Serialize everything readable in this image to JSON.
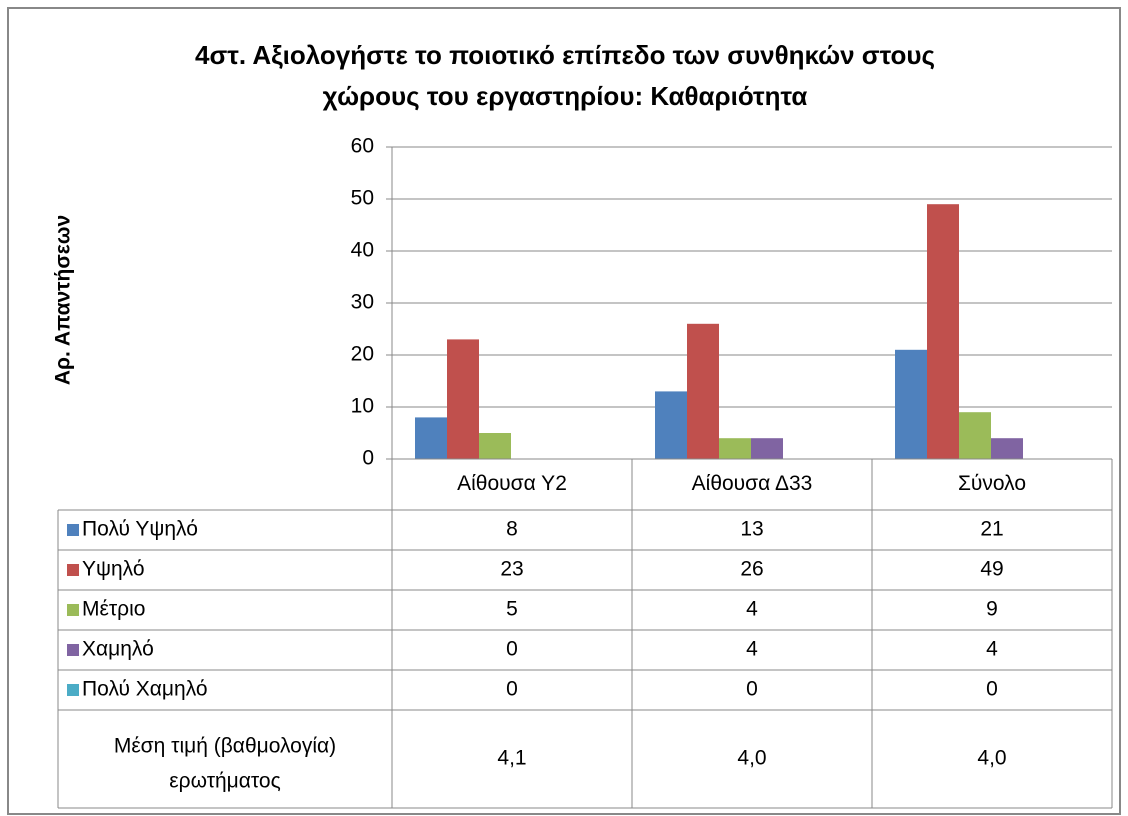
{
  "chart_data": {
    "type": "bar",
    "title": [
      "4στ. Αξιολογήστε το ποιοτικό επίπεδο των συνθηκών στους",
      "χώρους του εργαστηρίου: Καθαριότητα"
    ],
    "y_label": "Αρ. Απαντήσεων",
    "categories": [
      "Αίθουσα Υ2",
      "Αίθουσα Δ33",
      "Σύνολο"
    ],
    "series": [
      {
        "name": "Πολύ Υψηλό",
        "color": "#4F81BD",
        "values": [
          8,
          13,
          21
        ]
      },
      {
        "name": "Υψηλό",
        "color": "#C0504D",
        "values": [
          23,
          26,
          49
        ]
      },
      {
        "name": "Μέτριο",
        "color": "#9BBB59",
        "values": [
          5,
          4,
          9
        ]
      },
      {
        "name": "Χαμηλό",
        "color": "#8064A2",
        "values": [
          0,
          4,
          4
        ]
      },
      {
        "name": "Πολύ Χαμηλό",
        "color": "#4BACC6",
        "values": [
          0,
          0,
          0
        ]
      }
    ],
    "mean_row": {
      "label": [
        "Μέση τιμή (βαθμολογία)",
        "ερωτήματος"
      ],
      "cells": [
        "4,1",
        "4,0",
        "4,0"
      ]
    },
    "ylim": [
      0,
      60
    ],
    "yticks": [
      0,
      10,
      20,
      30,
      40,
      50,
      60
    ],
    "grid": true
  }
}
